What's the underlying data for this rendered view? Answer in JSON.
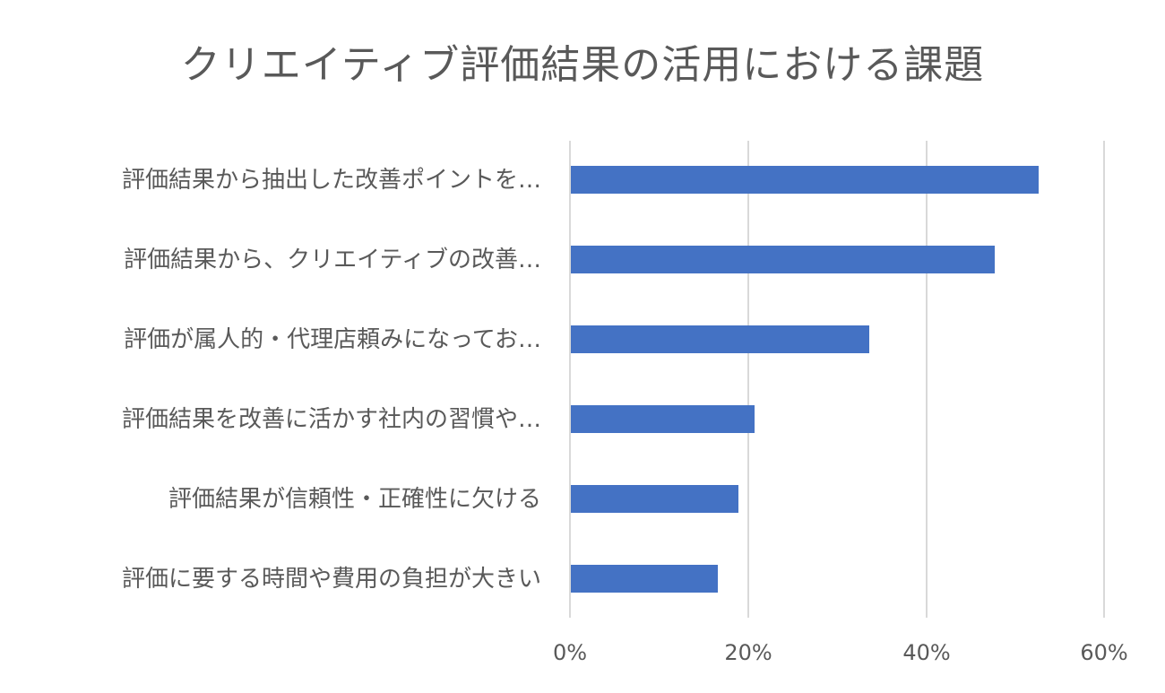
{
  "chart_data": {
    "type": "bar",
    "orientation": "horizontal",
    "title": "クリエイティブ評価結果の活用における課題",
    "xlabel": "",
    "ylabel": "",
    "categories": [
      "評価結果から抽出した改善ポイントを…",
      "評価結果から、クリエイティブの改善…",
      "評価が属人的・代理店頼みになってお…",
      "評価結果を改善に活かす社内の習慣や…",
      "評価結果が信頼性・正確性に欠ける",
      "評価に要する時間や費用の負担が大きい"
    ],
    "values": [
      52.5,
      47.6,
      33.5,
      20.6,
      18.8,
      16.5
    ],
    "unit": "%",
    "xlim": [
      0,
      60
    ],
    "x_ticks": [
      "0%",
      "20%",
      "40%",
      "60%"
    ],
    "grid": true,
    "legend": null,
    "bar_color": "#4472C4"
  },
  "colors": {
    "bar": "#4472C4",
    "gridline": "#D9D9D9",
    "text": "#595959"
  }
}
